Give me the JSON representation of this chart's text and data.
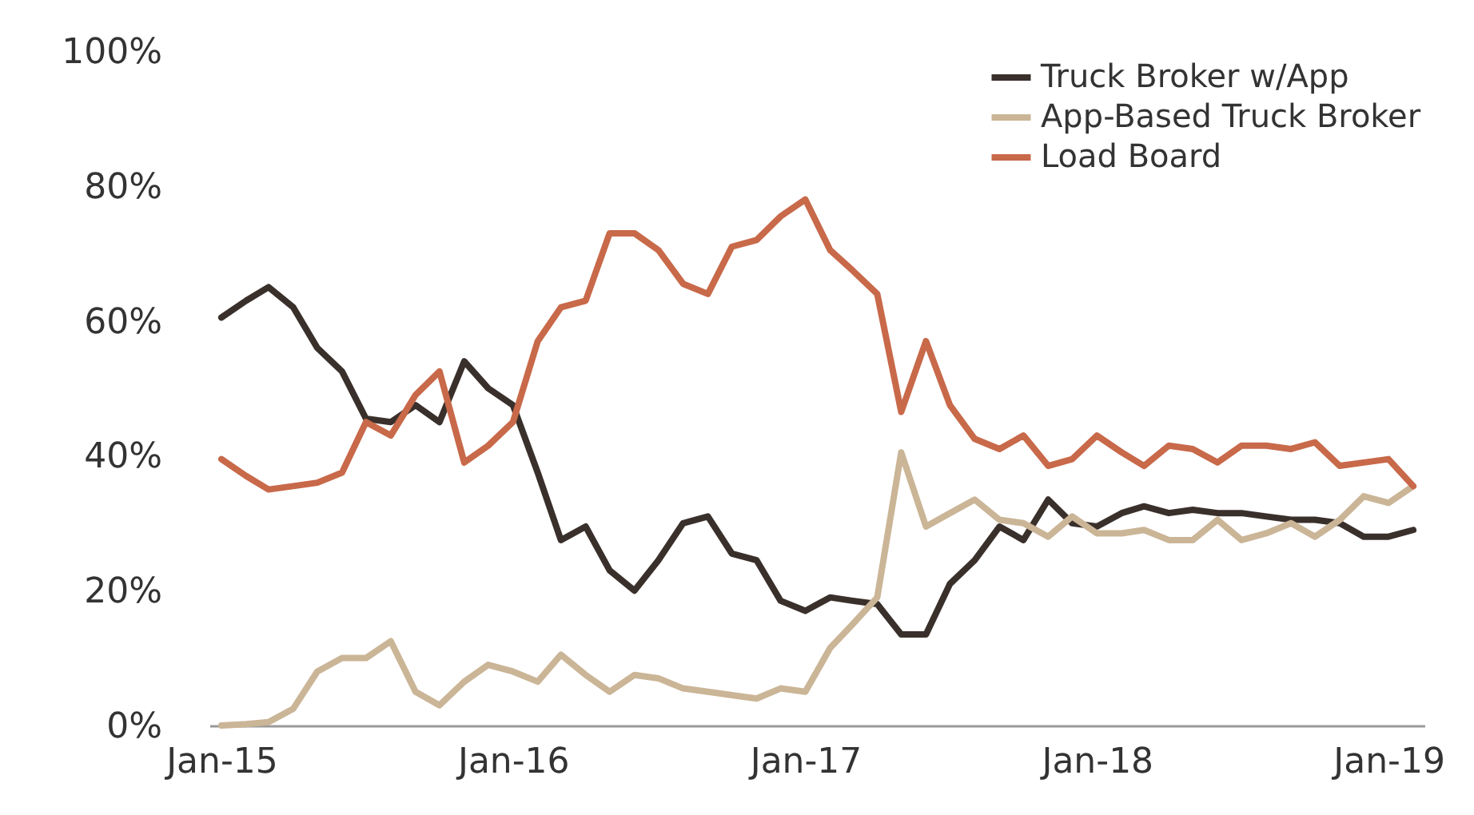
{
  "chart_data": {
    "type": "line",
    "legend": "top right",
    "ylim": [
      0,
      100
    ],
    "yticks": [
      {
        "value": 0,
        "label": "0%"
      },
      {
        "value": 20,
        "label": "20%"
      },
      {
        "value": 40,
        "label": "40%"
      },
      {
        "value": 60,
        "label": "60%"
      },
      {
        "value": 80,
        "label": "80%"
      },
      {
        "value": 100,
        "label": "100%"
      }
    ],
    "xlim": [
      "2014-12-17",
      "2019-02-15"
    ],
    "xticks": [
      {
        "value": "2015-01",
        "label": "Jan-15"
      },
      {
        "value": "2016-01",
        "label": "Jan-16"
      },
      {
        "value": "2017-01",
        "label": "Jan-17"
      },
      {
        "value": "2018-01",
        "label": "Jan-18"
      },
      {
        "value": "2019-01",
        "label": "Jan-19"
      }
    ],
    "x": [
      "2015-01",
      "2015-02",
      "2015-03",
      "2015-04",
      "2015-05",
      "2015-06",
      "2015-07",
      "2015-08",
      "2015-09",
      "2015-10",
      "2015-11",
      "2015-12",
      "2016-01",
      "2016-02",
      "2016-03",
      "2016-04",
      "2016-05",
      "2016-06",
      "2016-07",
      "2016-08",
      "2016-09",
      "2016-10",
      "2016-11",
      "2016-12",
      "2017-01",
      "2017-02",
      "2017-03",
      "2017-04",
      "2017-05",
      "2017-06",
      "2017-07",
      "2017-08",
      "2017-09",
      "2017-10",
      "2017-11",
      "2017-12",
      "2018-01",
      "2018-02",
      "2018-03",
      "2018-04",
      "2018-05",
      "2018-06",
      "2018-07",
      "2018-08",
      "2018-09",
      "2018-10",
      "2018-11",
      "2018-12",
      "2019-01",
      "2019-02"
    ],
    "series": [
      {
        "name": "Truck Broker w/App",
        "color": "#3a302b",
        "values": [
          60.5,
          63,
          65,
          62,
          56,
          52.5,
          45.5,
          45,
          47.5,
          45,
          54,
          50,
          47.5,
          37.5,
          27.5,
          29.5,
          23,
          20,
          24.5,
          30,
          31,
          25.5,
          24.5,
          18.5,
          17,
          19,
          18.5,
          18,
          13.5,
          13.5,
          21,
          24.5,
          29.5,
          27.5,
          33.5,
          30,
          29.5,
          31.5,
          32.5,
          31.5,
          32,
          31.5,
          31.5,
          31,
          30.5,
          30.5,
          30,
          28,
          28,
          29
        ]
      },
      {
        "name": "App-Based Truck Broker",
        "color": "#cbb597",
        "values": [
          0,
          0.2,
          0.5,
          2.5,
          8,
          10,
          10,
          12.5,
          5,
          3,
          6.5,
          9,
          8,
          6.5,
          10.5,
          7.5,
          5,
          7.5,
          7,
          5.5,
          5,
          4.5,
          4,
          5.5,
          5,
          11.5,
          15,
          19,
          40.5,
          29.5,
          31.5,
          33.5,
          30.5,
          30,
          28,
          31,
          28.5,
          28.5,
          29,
          27.5,
          27.5,
          30.5,
          27.5,
          28.5,
          30,
          28,
          30.5,
          34,
          33,
          35.5
        ]
      },
      {
        "name": "Load Board",
        "color": "#c8694a",
        "values": [
          39.5,
          37,
          35,
          35.5,
          36,
          37.5,
          45,
          43,
          49,
          52.5,
          39,
          41.5,
          45,
          57,
          62,
          63,
          73,
          73,
          70.5,
          65.5,
          64,
          71,
          72,
          75.5,
          78,
          70.5,
          67.5,
          64,
          46.5,
          57,
          47.5,
          42.5,
          41,
          43,
          38.5,
          39.5,
          43,
          40.5,
          38.5,
          41.5,
          41,
          39,
          41.5,
          41.5,
          41,
          42,
          38.5,
          39,
          39.5,
          35.5
        ]
      }
    ]
  }
}
